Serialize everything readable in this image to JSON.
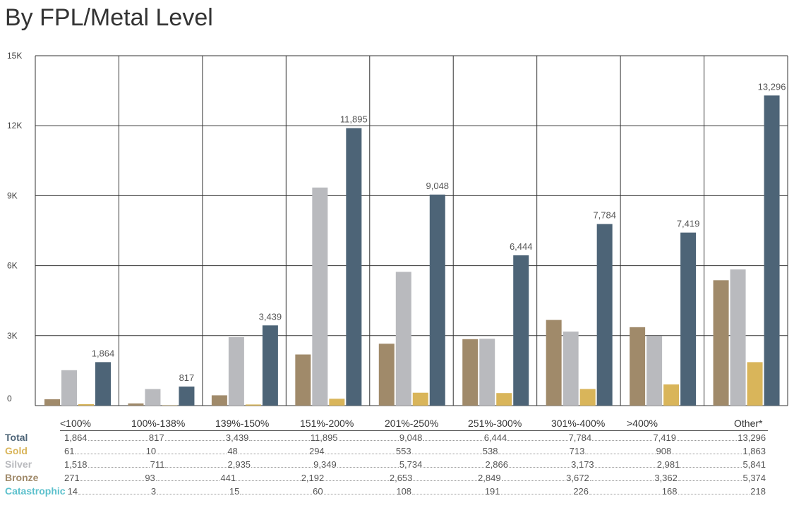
{
  "title": "By FPL/Metal Level",
  "colors": {
    "Bronze": "#a08a6a",
    "Silver": "#b9babe",
    "Gold": "#d9b55a",
    "Total": "#4d6477",
    "Catastrophic": "#5bc0cc"
  },
  "chart_data": {
    "type": "bar",
    "title": "By FPL/Metal Level",
    "categories": [
      "<100%",
      "100%-138%",
      "139%-150%",
      "151%-200%",
      "201%-250%",
      "251%-300%",
      "301%-400%",
      ">400%",
      "Other*"
    ],
    "ylim": [
      0,
      15000
    ],
    "yticks": [
      "0",
      "3K",
      "6K",
      "9K",
      "12K",
      "15K"
    ],
    "ytick_values": [
      0,
      3000,
      6000,
      9000,
      12000,
      15000
    ],
    "grid": true,
    "bar_order": [
      "Bronze",
      "Silver",
      "Gold",
      "Total"
    ],
    "labelled_series": "Total",
    "series": [
      {
        "name": "Total",
        "values": [
          1864,
          817,
          3439,
          11895,
          9048,
          6444,
          7784,
          7419,
          13296
        ],
        "labels": [
          "1,864",
          "817",
          "3,439",
          "11,895",
          "9,048",
          "6,444",
          "7,784",
          "7,419",
          "13,296"
        ]
      },
      {
        "name": "Gold",
        "values": [
          61,
          10,
          48,
          294,
          553,
          538,
          713,
          908,
          1863
        ],
        "labels": [
          "61",
          "10",
          "48",
          "294",
          "553",
          "538",
          "713",
          "908",
          "1,863"
        ]
      },
      {
        "name": "Silver",
        "values": [
          1518,
          711,
          2935,
          9349,
          5734,
          2866,
          3173,
          2981,
          5841
        ],
        "labels": [
          "1,518",
          "711",
          "2,935",
          "9,349",
          "5,734",
          "2,866",
          "3,173",
          "2,981",
          "5,841"
        ]
      },
      {
        "name": "Bronze",
        "values": [
          271,
          93,
          441,
          2192,
          2653,
          2849,
          3672,
          3362,
          5374
        ],
        "labels": [
          "271",
          "93",
          "441",
          "2,192",
          "2,653",
          "2,849",
          "3,672",
          "3,362",
          "5,374"
        ]
      },
      {
        "name": "Catastrophic",
        "values": [
          14,
          3,
          15,
          60,
          108,
          191,
          226,
          168,
          218
        ],
        "labels": [
          "14",
          "3",
          "15",
          "60",
          "108",
          "191",
          "226",
          "168",
          "218"
        ]
      }
    ]
  }
}
